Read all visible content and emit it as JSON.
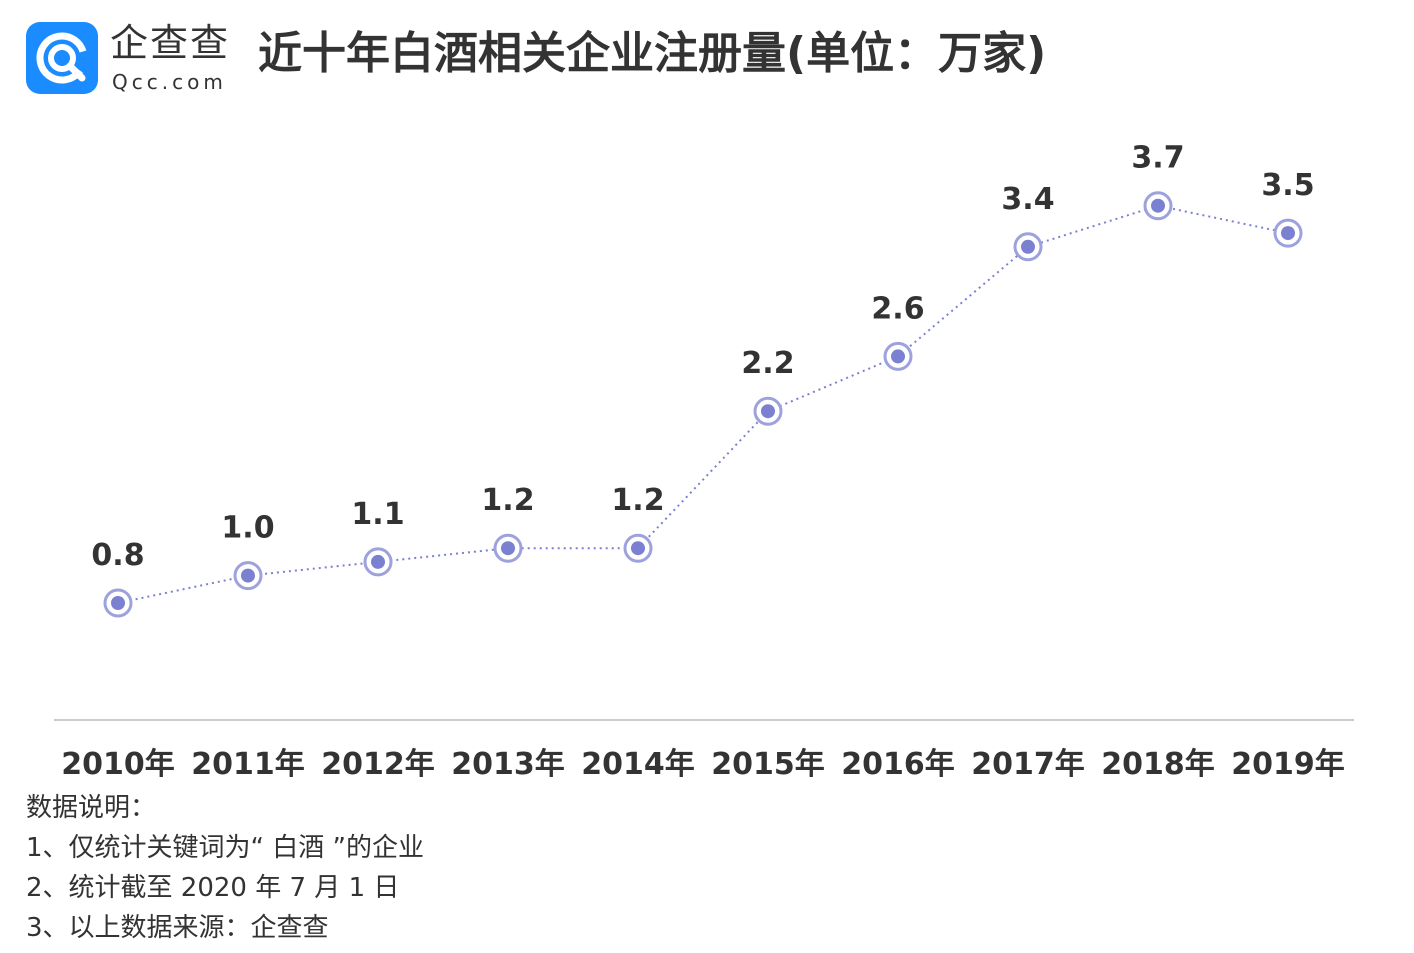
{
  "header": {
    "logo_cn": "企查查",
    "logo_en": "Qcc.com",
    "title": "近十年白酒相关企业注册量(单位：万家)"
  },
  "colors": {
    "brand": "#1a8cff",
    "line": "#7b80d0",
    "marker_fill": "#7b80d0",
    "marker_ring": "#9da2dd",
    "axis": "#cccccc",
    "text": "#333333"
  },
  "chart_data": {
    "type": "line",
    "title": "近十年白酒相关企业注册量(单位：万家)",
    "categories": [
      "2010年",
      "2011年",
      "2012年",
      "2013年",
      "2014年",
      "2015年",
      "2016年",
      "2017年",
      "2018年",
      "2019年"
    ],
    "series": [
      {
        "values": [
          0.8,
          1.0,
          1.1,
          1.2,
          1.2,
          2.2,
          2.6,
          3.4,
          3.7,
          3.5
        ]
      }
    ],
    "value_labels": [
      "0.8",
      "1.0",
      "1.1",
      "1.2",
      "1.2",
      "2.2",
      "2.6",
      "3.4",
      "3.7",
      "3.5"
    ],
    "xlabel": "",
    "ylabel": "",
    "line_style": "dotted",
    "grid": false,
    "legend": "none"
  },
  "notes": {
    "heading": "数据说明：",
    "items": [
      "1、仅统计关键词为“ 白酒 ”的企业",
      "2、统计截至 2020 年 7 月 1 日",
      "3、以上数据来源：企查查"
    ]
  }
}
